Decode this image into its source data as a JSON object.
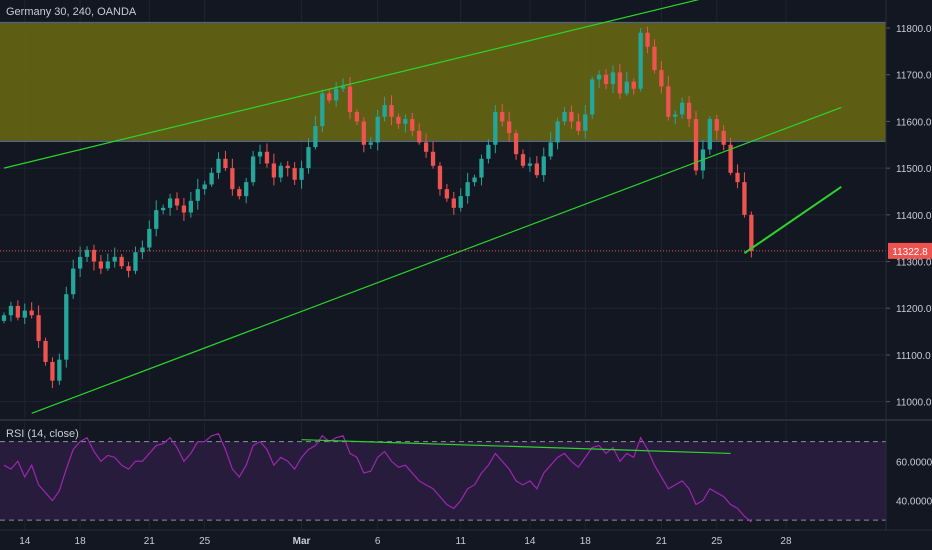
{
  "header": {
    "symbol_label": "Germany 30, 240, OANDA"
  },
  "rsi_panel": {
    "label": "RSI (14, close)"
  },
  "colors": {
    "background": "#131722",
    "grid": "#1f2433",
    "bull": "#26a69a",
    "bear": "#ef5350",
    "trendline": "#2bd42b",
    "zone_fill": "#6b6a12",
    "zone_border": "#4a64a8",
    "price_line": "#ef5350",
    "rsi_line": "#9c27b0",
    "rsi_band": "#2a1d3f",
    "axis_text": "#c9ccd6"
  },
  "chart_data": {
    "type": "candlestick",
    "title": "Germany 30, 240, OANDA",
    "y_axis": {
      "ticks": [
        "11800.0",
        "11700.0",
        "11600.0",
        "11500.0",
        "11400.0",
        "11300.0",
        "11200.0",
        "11100.0",
        "11000.0"
      ],
      "tick_values": [
        11800,
        11700,
        11600,
        11500,
        11400,
        11300,
        11200,
        11100,
        11000
      ],
      "range": [
        10965,
        11860
      ]
    },
    "x_axis": {
      "labels": [
        "14",
        "18",
        "21",
        "25",
        "Mar",
        "6",
        "11",
        "14",
        "18",
        "21",
        "25",
        "28"
      ],
      "positions": [
        3,
        11,
        21,
        29,
        43,
        54,
        66,
        76,
        84,
        95,
        103,
        113
      ]
    },
    "candle_count": 109,
    "current_price": {
      "label": "11322.8",
      "value": 11322.8,
      "start_index": 0
    },
    "resistance_zone": {
      "top": 11812,
      "bottom": 11557
    },
    "trendlines": [
      {
        "name": "upper-channel",
        "from": [
          0,
          11500
        ],
        "to": [
          121,
          11935
        ]
      },
      {
        "name": "lower-channel",
        "from": [
          4,
          10975
        ],
        "to": [
          121,
          11630
        ]
      }
    ],
    "arrow_line": {
      "from": [
        107,
        11318
      ],
      "to": [
        121,
        11460
      ]
    },
    "series": [
      {
        "closes": [
          11185,
          11205,
          11180,
          11195,
          11185,
          11130,
          11085,
          11045,
          11090,
          11230,
          11285,
          11310,
          11325,
          11300,
          11285,
          11300,
          11310,
          11290,
          11280,
          11320,
          11330,
          11370,
          11410,
          11415,
          11435,
          11420,
          11405,
          11430,
          11455,
          11465,
          11490,
          11520,
          11500,
          11455,
          11440,
          11470,
          11525,
          11535,
          11510,
          11480,
          11505,
          11500,
          11475,
          11500,
          11545,
          11590,
          11660,
          11645,
          11670,
          11675,
          11620,
          11600,
          11550,
          11555,
          11610,
          11635,
          11610,
          11595,
          11605,
          11580,
          11555,
          11535,
          11505,
          11455,
          11435,
          11415,
          11440,
          11470,
          11480,
          11520,
          11550,
          11620,
          11600,
          11575,
          11530,
          11505,
          11510,
          11485,
          11525,
          11555,
          11600,
          11620,
          11600,
          11580,
          11615,
          11690,
          11700,
          11680,
          11705,
          11660,
          11685,
          11670,
          11790,
          11760,
          11710,
          11675,
          11610,
          11615,
          11640,
          11605,
          11495,
          11540,
          11605,
          11580,
          11550,
          11490,
          11470,
          11400,
          11322.8
        ]
      },
      {
        "name": "RSI",
        "values": [
          58,
          56,
          60,
          52,
          58,
          48,
          44,
          40,
          45,
          56,
          66,
          70,
          72,
          65,
          60,
          63,
          62,
          58,
          56,
          60,
          60,
          64,
          68,
          69,
          72,
          67,
          60,
          64,
          70,
          70,
          73,
          74,
          66,
          56,
          52,
          58,
          68,
          70,
          66,
          58,
          62,
          60,
          56,
          62,
          66,
          68,
          73,
          70,
          72,
          73,
          64,
          62,
          54,
          55,
          62,
          65,
          60,
          57,
          58,
          54,
          50,
          48,
          46,
          42,
          38,
          36,
          40,
          46,
          48,
          54,
          58,
          64,
          60,
          56,
          50,
          48,
          50,
          46,
          54,
          58,
          62,
          64,
          60,
          57,
          62,
          67,
          68,
          64,
          67,
          60,
          64,
          62,
          72,
          66,
          58,
          52,
          46,
          48,
          50,
          46,
          38,
          40,
          46,
          44,
          42,
          38,
          36,
          32,
          29
        ],
        "y_ticks": [
          "60.0000",
          "40.0000"
        ],
        "y_tick_values": [
          60,
          40
        ],
        "range": [
          25,
          80
        ],
        "bands": [
          30,
          70
        ],
        "divergence_line": {
          "from": [
            43,
            71
          ],
          "to": [
            105,
            64
          ]
        }
      }
    ]
  }
}
